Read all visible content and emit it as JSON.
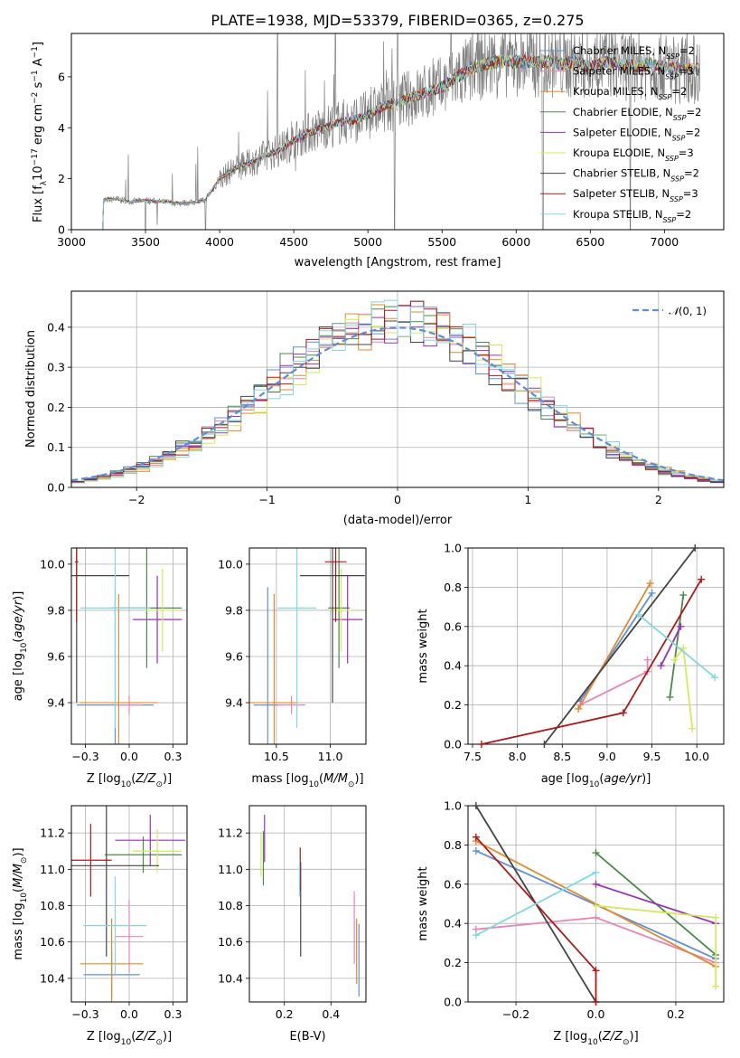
{
  "colors": {
    "Chabrier MILES": "#6090d8",
    "Salpeter MILES": "#e884b8",
    "Kroupa MILES": "#e58a2a",
    "Chabrier ELODIE": "#4a8a4a",
    "Salpeter ELODIE": "#9b30b8",
    "Kroupa ELODIE": "#d4ea58",
    "Chabrier STELIB": "#444444",
    "Salpeter STELIB": "#b01818",
    "Kroupa STELIB": "#80d8e0",
    "data": "#808080",
    "normal": "#5b8ed6"
  },
  "chart_data": [
    {
      "id": "spectrum",
      "type": "line",
      "title": "PLATE=1938, MJD=53379, FIBERID=0365, z=0.275",
      "xlabel": "wavelength [Angstrom, rest frame]",
      "ylabel": "Flux [f_λ 10^-17 erg cm^-2 s^-1 A^-1]",
      "xlim": [
        3000,
        7400
      ],
      "ylim": [
        0,
        7.7
      ],
      "xticks": [
        3000,
        3500,
        4000,
        4500,
        5000,
        5500,
        6000,
        6500,
        7000
      ],
      "yticks": [
        0,
        2,
        4,
        6
      ],
      "grid": false,
      "legend_placement": "upper-right",
      "legend": [
        {
          "label": "Chabrier MILES",
          "nssp": "2"
        },
        {
          "label": "Salpeter MILES",
          "nssp": "3"
        },
        {
          "label": "Kroupa MILES",
          "nssp": "2"
        },
        {
          "label": "Chabrier ELODIE",
          "nssp": "2"
        },
        {
          "label": "Salpeter ELODIE",
          "nssp": "2"
        },
        {
          "label": "Kroupa ELODIE",
          "nssp": "3"
        },
        {
          "label": "Chabrier STELIB",
          "nssp": "2"
        },
        {
          "label": "Salpeter STELIB",
          "nssp": "3"
        },
        {
          "label": "Kroupa STELIB",
          "nssp": "2"
        }
      ],
      "continuum": {
        "x": [
          3210,
          3300,
          3400,
          3500,
          3600,
          3700,
          3800,
          3900,
          4000,
          4100,
          4200,
          4300,
          4400,
          4500,
          4600,
          4700,
          4800,
          4900,
          5000,
          5100,
          5200,
          5300,
          5400,
          5500,
          5600,
          5700,
          5800,
          5900,
          6000,
          6100,
          6200,
          6300,
          6400,
          6500,
          6600,
          6700,
          6800,
          6900,
          7000,
          7100,
          7200
        ],
        "y": [
          1.15,
          1.2,
          1.1,
          1.15,
          1.1,
          1.05,
          1.05,
          1.15,
          2.0,
          2.4,
          2.6,
          2.9,
          3.1,
          3.5,
          3.8,
          4.0,
          4.2,
          4.3,
          4.5,
          4.8,
          5.0,
          5.2,
          5.4,
          5.6,
          6.0,
          6.3,
          6.5,
          6.6,
          6.6,
          6.6,
          6.6,
          6.5,
          6.6,
          6.4,
          6.6,
          6.5,
          6.4,
          6.5,
          6.4,
          6.3,
          6.3
        ]
      }
    },
    {
      "id": "residuals",
      "type": "step",
      "xlabel": "(data-model)/error",
      "ylabel": "Normed distribution",
      "xlim": [
        -2.5,
        2.5
      ],
      "ylim": [
        0,
        0.49
      ],
      "xticks": [
        -2,
        -1,
        0,
        1,
        2
      ],
      "yticks": [
        0.0,
        0.1,
        0.2,
        0.3,
        0.4
      ],
      "grid": true,
      "legend_placement": "upper-right",
      "legend": [
        {
          "label": "N(0, 1)"
        }
      ]
    },
    {
      "id": "age-vs-Z",
      "type": "errorbar",
      "xlabel": "Z [log10(Z/Z⊙)]",
      "ylabel": "age [log10(age/yr)]",
      "xlim": [
        -0.33,
        0.33
      ],
      "ylim": [
        9.22,
        10.07
      ],
      "xticks": [
        -0.25,
        0.0,
        0.25
      ],
      "yticks": [
        9.4,
        9.6,
        9.8,
        10.0
      ],
      "grid": true,
      "points": [
        {
          "model": "Chabrier MILES",
          "x": -0.08,
          "xerr": 0.22,
          "y": 9.39,
          "yerr": 0.51
        },
        {
          "model": "Salpeter MILES",
          "x": 0.0,
          "xerr": 0.08,
          "y": 9.39,
          "yerr": 0.04
        },
        {
          "model": "Kroupa MILES",
          "x": -0.06,
          "xerr": 0.22,
          "y": 9.4,
          "yerr": 0.47
        },
        {
          "model": "Chabrier ELODIE",
          "x": 0.1,
          "xerr": 0.2,
          "y": 9.81,
          "yerr": 0.26
        },
        {
          "model": "Salpeter ELODIE",
          "x": 0.16,
          "xerr": 0.14,
          "y": 9.76,
          "yerr": 0.19
        },
        {
          "model": "Kroupa ELODIE",
          "x": 0.19,
          "xerr": 0.1,
          "y": 9.8,
          "yerr": 0.18
        },
        {
          "model": "Chabrier STELIB",
          "x": -0.3,
          "xerr": 0.3,
          "y": 9.95,
          "yerr": 0.55
        },
        {
          "model": "Salpeter STELIB",
          "x": -0.3,
          "xerr": 0.01,
          "y": 10.01,
          "yerr": 0.26
        },
        {
          "model": "Kroupa STELIB",
          "x": -0.08,
          "xerr": 0.2,
          "y": 9.81,
          "yerr": 0.52
        }
      ]
    },
    {
      "id": "age-vs-mass",
      "type": "errorbar",
      "xlabel": "mass [log10(M/M⊙)]",
      "xlim": [
        10.25,
        11.33
      ],
      "ylim": [
        9.22,
        10.07
      ],
      "xticks": [
        10.5,
        11.0
      ],
      "yticks": [
        9.4,
        9.6,
        9.8,
        10.0
      ],
      "grid": true,
      "points": [
        {
          "model": "Chabrier MILES",
          "x": 10.42,
          "xerr": 0.13,
          "y": 9.39,
          "yerr": 0.51
        },
        {
          "model": "Salpeter MILES",
          "x": 10.64,
          "xerr": 0.13,
          "y": 9.39,
          "yerr": 0.04
        },
        {
          "model": "Kroupa MILES",
          "x": 10.48,
          "xerr": 0.22,
          "y": 9.4,
          "yerr": 0.47
        },
        {
          "model": "Chabrier ELODIE",
          "x": 11.08,
          "xerr": 0.1,
          "y": 9.81,
          "yerr": 0.26
        },
        {
          "model": "Salpeter ELODIE",
          "x": 11.16,
          "xerr": 0.14,
          "y": 9.76,
          "yerr": 0.19
        },
        {
          "model": "Kroupa ELODIE",
          "x": 11.1,
          "xerr": 0.1,
          "y": 9.8,
          "yerr": 0.18
        },
        {
          "model": "Chabrier STELIB",
          "x": 11.02,
          "xerr": 0.3,
          "y": 9.95,
          "yerr": 0.55
        },
        {
          "model": "Salpeter STELIB",
          "x": 11.05,
          "xerr": 0.1,
          "y": 10.01,
          "yerr": 0.26
        },
        {
          "model": "Kroupa STELIB",
          "x": 10.69,
          "xerr": 0.18,
          "y": 9.81,
          "yerr": 0.52
        }
      ]
    },
    {
      "id": "mass-weight-vs-age",
      "type": "line",
      "xlabel": "age [log10(age/yr)]",
      "ylabel": "mass weight",
      "xlim": [
        7.45,
        10.3
      ],
      "ylim": [
        0,
        1.0
      ],
      "xticks": [
        7.5,
        8.0,
        8.5,
        9.0,
        9.5,
        10.0
      ],
      "yticks": [
        0.0,
        0.2,
        0.4,
        0.6,
        0.8,
        1.0
      ],
      "grid": true,
      "series": [
        {
          "model": "Chabrier MILES",
          "x": [
            8.7,
            9.5
          ],
          "y": [
            0.22,
            0.77
          ]
        },
        {
          "model": "Salpeter MILES",
          "x": [
            8.7,
            9.45,
            9.45
          ],
          "y": [
            0.2,
            0.37,
            0.43
          ]
        },
        {
          "model": "Kroupa MILES",
          "x": [
            8.68,
            9.48
          ],
          "y": [
            0.18,
            0.82
          ]
        },
        {
          "model": "Chabrier ELODIE",
          "x": [
            9.7,
            9.85
          ],
          "y": [
            0.24,
            0.76
          ]
        },
        {
          "model": "Salpeter ELODIE",
          "x": [
            9.6,
            9.82
          ],
          "y": [
            0.4,
            0.6
          ]
        },
        {
          "model": "Kroupa ELODIE",
          "x": [
            9.75,
            9.85,
            9.95
          ],
          "y": [
            0.43,
            0.49,
            0.08
          ]
        },
        {
          "model": "Chabrier STELIB",
          "x": [
            8.3,
            9.98
          ],
          "y": [
            0.0,
            1.0
          ]
        },
        {
          "model": "Salpeter STELIB",
          "x": [
            7.6,
            9.18,
            10.05
          ],
          "y": [
            0.0,
            0.16,
            0.84
          ]
        },
        {
          "model": "Kroupa STELIB",
          "x": [
            9.35,
            10.2
          ],
          "y": [
            0.66,
            0.34
          ]
        }
      ]
    },
    {
      "id": "mass-vs-Z",
      "type": "errorbar",
      "xlabel": "Z [log10(Z/Z⊙)]",
      "ylabel": "mass [log10(M/M⊙)]",
      "xlim": [
        -0.33,
        0.33
      ],
      "ylim": [
        10.27,
        11.35
      ],
      "xticks": [
        -0.25,
        0.0,
        0.25
      ],
      "yticks": [
        10.4,
        10.6,
        10.8,
        11.0,
        11.2
      ],
      "grid": true,
      "points": [
        {
          "model": "Chabrier MILES",
          "x": -0.1,
          "xerr": 0.16,
          "y": 10.42,
          "yerr": 0.13
        },
        {
          "model": "Salpeter MILES",
          "x": 0.0,
          "xerr": 0.08,
          "y": 10.63,
          "yerr": 0.2
        },
        {
          "model": "Kroupa MILES",
          "x": -0.1,
          "xerr": 0.18,
          "y": 10.48,
          "yerr": 0.25
        },
        {
          "model": "Chabrier ELODIE",
          "x": 0.08,
          "xerr": 0.22,
          "y": 11.08,
          "yerr": 0.1
        },
        {
          "model": "Salpeter ELODIE",
          "x": 0.12,
          "xerr": 0.2,
          "y": 11.16,
          "yerr": 0.14
        },
        {
          "model": "Kroupa ELODIE",
          "x": 0.16,
          "xerr": 0.14,
          "y": 11.1,
          "yerr": 0.12
        },
        {
          "model": "Chabrier STELIB",
          "x": -0.13,
          "xerr": 0.3,
          "y": 11.02,
          "yerr": 0.5
        },
        {
          "model": "Salpeter STELIB",
          "x": -0.22,
          "xerr": 0.12,
          "y": 11.05,
          "yerr": 0.2
        },
        {
          "model": "Kroupa STELIB",
          "x": -0.08,
          "xerr": 0.18,
          "y": 10.69,
          "yerr": 0.27
        }
      ]
    },
    {
      "id": "mass-vs-EBV",
      "type": "errorbar",
      "xlabel": "E(B-V)",
      "xlim": [
        0.05,
        0.55
      ],
      "ylim": [
        10.27,
        11.35
      ],
      "xticks": [
        0.2,
        0.4
      ],
      "yticks": [
        10.4,
        10.6,
        10.8,
        11.0,
        11.2
      ],
      "grid": true,
      "points": [
        {
          "model": "Chabrier MILES",
          "x": 0.52,
          "y": 10.5,
          "yerr": 0.2
        },
        {
          "model": "Salpeter MILES",
          "x": 0.5,
          "y": 10.68,
          "yerr": 0.2
        },
        {
          "model": "Kroupa MILES",
          "x": 0.51,
          "y": 10.55,
          "yerr": 0.18
        },
        {
          "model": "Chabrier ELODIE",
          "x": 0.11,
          "y": 11.06,
          "yerr": 0.15
        },
        {
          "model": "Salpeter ELODIE",
          "x": 0.115,
          "y": 11.17,
          "yerr": 0.13
        },
        {
          "model": "Kroupa ELODIE",
          "x": 0.1,
          "y": 11.08,
          "yerr": 0.12
        },
        {
          "model": "Chabrier STELIB",
          "x": 0.27,
          "y": 10.78,
          "yerr": 0.26
        },
        {
          "model": "Salpeter STELIB",
          "x": 0.268,
          "y": 11.0,
          "yerr": 0.12
        },
        {
          "model": "Kroupa STELIB",
          "x": 0.265,
          "y": 10.95,
          "yerr": 0.1
        }
      ]
    },
    {
      "id": "mass-weight-vs-Z",
      "type": "line",
      "xlabel": "Z [log10(Z/Z⊙)]",
      "ylabel": "mass weight",
      "xlim": [
        -0.32,
        0.32
      ],
      "ylim": [
        0,
        1.0
      ],
      "xticks": [
        -0.2,
        0.0,
        0.2
      ],
      "yticks": [
        0.0,
        0.2,
        0.4,
        0.6,
        0.8,
        1.0
      ],
      "grid": true,
      "series": [
        {
          "model": "Chabrier MILES",
          "x": [
            -0.3,
            0.3
          ],
          "y": [
            0.77,
            0.22
          ]
        },
        {
          "model": "Salpeter MILES",
          "x": [
            -0.3,
            0.0,
            0.3
          ],
          "y": [
            0.37,
            0.43,
            0.2
          ]
        },
        {
          "model": "Kroupa MILES",
          "x": [
            -0.3,
            0.3
          ],
          "y": [
            0.82,
            0.18
          ]
        },
        {
          "model": "Chabrier ELODIE",
          "x": [
            0.0,
            0.3
          ],
          "y": [
            0.76,
            0.24
          ]
        },
        {
          "model": "Salpeter ELODIE",
          "x": [
            0.0,
            0.3
          ],
          "y": [
            0.6,
            0.4
          ]
        },
        {
          "model": "Kroupa ELODIE",
          "x": [
            0.0,
            0.3,
            0.3
          ],
          "y": [
            0.49,
            0.43,
            0.08
          ]
        },
        {
          "model": "Chabrier STELIB",
          "x": [
            -0.3,
            0.0
          ],
          "y": [
            1.0,
            0.0
          ]
        },
        {
          "model": "Salpeter STELIB",
          "x": [
            -0.3,
            0.0,
            0.0
          ],
          "y": [
            0.84,
            0.16,
            0.0
          ]
        },
        {
          "model": "Kroupa STELIB",
          "x": [
            -0.3,
            0.0
          ],
          "y": [
            0.34,
            0.66
          ]
        }
      ]
    }
  ]
}
